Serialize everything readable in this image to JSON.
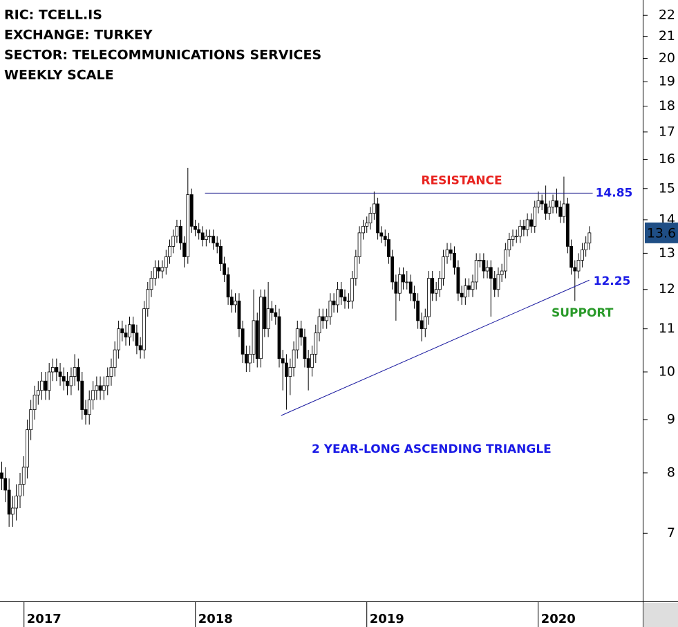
{
  "chart_data": {
    "type": "candlestick",
    "title_lines": [
      "RIC: TCELL.IS",
      "EXCHANGE: TURKEY",
      "SECTOR: TELECOMMUNICATIONS SERVICES",
      "WEEKLY SCALE"
    ],
    "log_y": true,
    "ylim": [
      6.02,
      22.76
    ],
    "yticks": [
      7,
      8,
      9,
      10,
      11,
      12,
      13,
      14,
      15,
      16,
      17,
      18,
      19,
      20,
      21,
      22
    ],
    "xlim": [
      2016.86,
      2020.61
    ],
    "xticks": [
      2017,
      2018,
      2019,
      2020
    ],
    "up_color": "#ffffff",
    "down_color": "#000000",
    "resistance": {
      "label": "RESISTANCE",
      "color": "#e8231f",
      "line_color": "#1a1a8c",
      "x": [
        2018.056,
        2020.318
      ],
      "y": 14.85
    },
    "support": {
      "label": "SUPPORT",
      "color": "#2a9a2a",
      "line_color": "#1a1aa0",
      "x": [
        2018.5,
        2020.298
      ],
      "y": [
        9.08,
        12.25
      ]
    },
    "pattern_label": "2 YEAR-LONG ASCENDING TRIANGLE",
    "level_color": "#1a1ae6",
    "last_price_color": "#1f4e85",
    "x": [
      2016.87,
      2016.891,
      2016.913,
      2016.934,
      2016.955,
      2016.977,
      2016.998,
      2017.019,
      2017.04,
      2017.062,
      2017.083,
      2017.104,
      2017.126,
      2017.147,
      2017.168,
      2017.19,
      2017.211,
      2017.232,
      2017.253,
      2017.275,
      2017.296,
      2017.317,
      2017.339,
      2017.36,
      2017.381,
      2017.403,
      2017.424,
      2017.445,
      2017.466,
      2017.488,
      2017.509,
      2017.53,
      2017.552,
      2017.573,
      2017.594,
      2017.616,
      2017.637,
      2017.658,
      2017.679,
      2017.701,
      2017.722,
      2017.743,
      2017.765,
      2017.786,
      2017.807,
      2017.829,
      2017.85,
      2017.871,
      2017.892,
      2017.914,
      2017.935,
      2017.956,
      2017.978,
      2017.999,
      2018.02,
      2018.042,
      2018.063,
      2018.084,
      2018.105,
      2018.127,
      2018.148,
      2018.169,
      2018.191,
      2018.212,
      2018.233,
      2018.255,
      2018.276,
      2018.297,
      2018.318,
      2018.34,
      2018.361,
      2018.382,
      2018.404,
      2018.425,
      2018.446,
      2018.468,
      2018.489,
      2018.51,
      2018.531,
      2018.553,
      2018.574,
      2018.595,
      2018.617,
      2018.638,
      2018.659,
      2018.681,
      2018.702,
      2018.723,
      2018.744,
      2018.766,
      2018.787,
      2018.808,
      2018.83,
      2018.851,
      2018.872,
      2018.894,
      2018.915,
      2018.936,
      2018.957,
      2018.979,
      2019.0,
      2019.021,
      2019.043,
      2019.064,
      2019.085,
      2019.107,
      2019.128,
      2019.149,
      2019.17,
      2019.192,
      2019.213,
      2019.234,
      2019.256,
      2019.277,
      2019.298,
      2019.32,
      2019.341,
      2019.362,
      2019.383,
      2019.405,
      2019.426,
      2019.447,
      2019.469,
      2019.49,
      2019.511,
      2019.533,
      2019.554,
      2019.575,
      2019.596,
      2019.618,
      2019.639,
      2019.66,
      2019.682,
      2019.703,
      2019.724,
      2019.746,
      2019.767,
      2019.788,
      2019.809,
      2019.831,
      2019.852,
      2019.873,
      2019.895,
      2019.916,
      2019.937,
      2019.959,
      2019.98,
      2020.001,
      2020.022,
      2020.044,
      2020.065,
      2020.086,
      2020.108,
      2020.129,
      2020.15,
      2020.172,
      2020.193,
      2020.214,
      2020.235,
      2020.257,
      2020.278,
      2020.299
    ],
    "candles": [
      [
        8.0,
        8.2,
        7.7,
        7.9
      ],
      [
        7.9,
        8.1,
        7.5,
        7.7
      ],
      [
        7.7,
        7.9,
        7.1,
        7.3
      ],
      [
        7.3,
        7.6,
        7.1,
        7.4
      ],
      [
        7.4,
        7.8,
        7.2,
        7.6
      ],
      [
        7.6,
        8.0,
        7.4,
        7.8
      ],
      [
        7.8,
        8.3,
        7.6,
        8.1
      ],
      [
        8.1,
        9.0,
        7.9,
        8.8
      ],
      [
        8.8,
        9.4,
        8.6,
        9.2
      ],
      [
        9.2,
        9.7,
        9.0,
        9.5
      ],
      [
        9.5,
        9.8,
        9.3,
        9.6
      ],
      [
        9.6,
        10.0,
        9.4,
        9.8
      ],
      [
        9.8,
        10.0,
        9.4,
        9.6
      ],
      [
        9.6,
        10.2,
        9.4,
        10.0
      ],
      [
        10.0,
        10.3,
        9.8,
        10.1
      ],
      [
        10.1,
        10.3,
        9.8,
        10.0
      ],
      [
        10.0,
        10.2,
        9.7,
        9.9
      ],
      [
        9.9,
        10.1,
        9.6,
        9.8
      ],
      [
        9.8,
        10.0,
        9.5,
        9.7
      ],
      [
        9.7,
        10.1,
        9.5,
        9.9
      ],
      [
        9.9,
        10.4,
        9.7,
        10.1
      ],
      [
        10.1,
        10.3,
        9.6,
        9.8
      ],
      [
        9.8,
        10.0,
        9.0,
        9.2
      ],
      [
        9.2,
        9.4,
        8.9,
        9.1
      ],
      [
        9.1,
        9.6,
        8.9,
        9.4
      ],
      [
        9.4,
        9.8,
        9.2,
        9.6
      ],
      [
        9.6,
        9.9,
        9.4,
        9.7
      ],
      [
        9.7,
        9.9,
        9.4,
        9.6
      ],
      [
        9.6,
        9.9,
        9.4,
        9.7
      ],
      [
        9.7,
        10.1,
        9.5,
        9.9
      ],
      [
        9.9,
        10.3,
        9.7,
        10.1
      ],
      [
        10.1,
        10.7,
        9.9,
        10.5
      ],
      [
        10.5,
        11.2,
        10.3,
        11.0
      ],
      [
        11.0,
        11.2,
        10.7,
        10.9
      ],
      [
        10.9,
        11.1,
        10.6,
        10.8
      ],
      [
        10.8,
        11.3,
        10.6,
        11.1
      ],
      [
        11.1,
        11.3,
        10.7,
        10.9
      ],
      [
        10.9,
        11.1,
        10.4,
        10.6
      ],
      [
        10.6,
        10.8,
        10.3,
        10.5
      ],
      [
        10.5,
        11.7,
        10.3,
        11.5
      ],
      [
        11.5,
        12.2,
        11.3,
        12.0
      ],
      [
        12.0,
        12.5,
        11.8,
        12.3
      ],
      [
        12.3,
        12.8,
        12.1,
        12.6
      ],
      [
        12.6,
        12.8,
        12.3,
        12.5
      ],
      [
        12.5,
        12.8,
        12.3,
        12.6
      ],
      [
        12.6,
        13.1,
        12.4,
        12.9
      ],
      [
        12.9,
        13.4,
        12.7,
        13.2
      ],
      [
        13.2,
        13.7,
        13.0,
        13.5
      ],
      [
        13.5,
        14.0,
        13.3,
        13.8
      ],
      [
        13.8,
        14.0,
        13.1,
        13.3
      ],
      [
        13.3,
        13.5,
        12.6,
        12.9
      ],
      [
        12.9,
        15.7,
        12.7,
        14.8
      ],
      [
        14.8,
        15.0,
        13.6,
        13.8
      ],
      [
        13.8,
        14.0,
        13.5,
        13.7
      ],
      [
        13.7,
        13.9,
        13.4,
        13.6
      ],
      [
        13.6,
        13.8,
        13.2,
        13.4
      ],
      [
        13.4,
        13.7,
        13.2,
        13.5
      ],
      [
        13.5,
        13.7,
        13.3,
        13.5
      ],
      [
        13.5,
        13.7,
        13.1,
        13.3
      ],
      [
        13.3,
        13.5,
        13.0,
        13.2
      ],
      [
        13.2,
        13.4,
        12.5,
        12.7
      ],
      [
        12.7,
        12.9,
        12.2,
        12.4
      ],
      [
        12.4,
        12.6,
        11.6,
        11.8
      ],
      [
        11.8,
        12.0,
        11.4,
        11.6
      ],
      [
        11.6,
        11.9,
        11.4,
        11.7
      ],
      [
        11.7,
        11.9,
        10.8,
        11.0
      ],
      [
        11.0,
        11.2,
        10.2,
        10.4
      ],
      [
        10.4,
        10.6,
        10.0,
        10.2
      ],
      [
        10.2,
        10.6,
        10.0,
        10.4
      ],
      [
        10.4,
        12.0,
        10.2,
        11.2
      ],
      [
        11.2,
        11.4,
        10.1,
        10.3
      ],
      [
        10.3,
        12.0,
        10.1,
        11.8
      ],
      [
        11.8,
        12.0,
        10.8,
        11.0
      ],
      [
        11.0,
        12.2,
        10.8,
        11.5
      ],
      [
        11.5,
        11.7,
        11.2,
        11.4
      ],
      [
        11.4,
        11.6,
        11.1,
        11.3
      ],
      [
        11.3,
        11.5,
        10.1,
        10.3
      ],
      [
        10.3,
        10.5,
        9.6,
        10.2
      ],
      [
        10.2,
        10.4,
        9.2,
        9.9
      ],
      [
        9.9,
        10.3,
        9.5,
        10.1
      ],
      [
        10.1,
        10.7,
        9.9,
        10.5
      ],
      [
        10.5,
        11.2,
        10.3,
        11.0
      ],
      [
        11.0,
        11.2,
        10.6,
        10.8
      ],
      [
        10.8,
        11.0,
        10.1,
        10.3
      ],
      [
        10.3,
        10.5,
        9.6,
        10.1
      ],
      [
        10.1,
        10.6,
        9.9,
        10.4
      ],
      [
        10.4,
        11.1,
        10.2,
        10.9
      ],
      [
        10.9,
        11.5,
        10.7,
        11.3
      ],
      [
        11.3,
        11.5,
        11.0,
        11.2
      ],
      [
        11.2,
        11.5,
        11.0,
        11.3
      ],
      [
        11.3,
        11.9,
        11.1,
        11.7
      ],
      [
        11.7,
        11.9,
        11.4,
        11.6
      ],
      [
        11.6,
        12.2,
        11.4,
        12.0
      ],
      [
        12.0,
        12.2,
        11.6,
        11.8
      ],
      [
        11.8,
        12.0,
        11.5,
        11.7
      ],
      [
        11.7,
        11.9,
        11.5,
        11.7
      ],
      [
        11.7,
        12.5,
        11.5,
        12.3
      ],
      [
        12.3,
        13.1,
        12.1,
        12.9
      ],
      [
        12.9,
        13.8,
        12.7,
        13.6
      ],
      [
        13.6,
        14.0,
        13.4,
        13.8
      ],
      [
        13.8,
        14.1,
        13.6,
        13.9
      ],
      [
        13.9,
        14.4,
        13.7,
        14.2
      ],
      [
        14.2,
        14.9,
        14.0,
        14.5
      ],
      [
        14.5,
        14.7,
        13.4,
        13.6
      ],
      [
        13.6,
        13.8,
        13.3,
        13.5
      ],
      [
        13.5,
        13.7,
        13.2,
        13.4
      ],
      [
        13.4,
        13.6,
        12.7,
        12.9
      ],
      [
        12.9,
        13.1,
        12.0,
        12.2
      ],
      [
        12.2,
        12.4,
        11.2,
        11.9
      ],
      [
        11.9,
        12.6,
        11.7,
        12.4
      ],
      [
        12.4,
        12.6,
        12.0,
        12.2
      ],
      [
        12.2,
        12.5,
        12.0,
        12.2
      ],
      [
        12.2,
        12.4,
        11.7,
        11.9
      ],
      [
        11.9,
        12.1,
        11.5,
        11.7
      ],
      [
        11.7,
        11.9,
        11.0,
        11.2
      ],
      [
        11.2,
        11.4,
        10.7,
        11.0
      ],
      [
        11.0,
        11.5,
        10.8,
        11.3
      ],
      [
        11.3,
        12.5,
        11.1,
        12.3
      ],
      [
        12.3,
        12.5,
        11.7,
        11.9
      ],
      [
        11.9,
        12.2,
        11.7,
        12.0
      ],
      [
        12.0,
        12.5,
        11.8,
        12.3
      ],
      [
        12.3,
        13.1,
        12.1,
        12.9
      ],
      [
        12.9,
        13.3,
        12.7,
        13.1
      ],
      [
        13.1,
        13.3,
        12.8,
        13.0
      ],
      [
        13.0,
        13.2,
        12.4,
        12.6
      ],
      [
        12.6,
        12.8,
        11.7,
        11.9
      ],
      [
        11.9,
        12.1,
        11.6,
        11.8
      ],
      [
        11.8,
        12.3,
        11.6,
        12.1
      ],
      [
        12.1,
        12.3,
        11.8,
        12.0
      ],
      [
        12.0,
        12.4,
        11.8,
        12.2
      ],
      [
        12.2,
        13.0,
        12.0,
        12.8
      ],
      [
        12.8,
        13.0,
        12.6,
        12.8
      ],
      [
        12.8,
        13.0,
        12.3,
        12.5
      ],
      [
        12.5,
        12.8,
        12.3,
        12.6
      ],
      [
        12.6,
        12.8,
        11.3,
        12.3
      ],
      [
        12.3,
        12.5,
        11.8,
        12.0
      ],
      [
        12.0,
        12.6,
        11.8,
        12.4
      ],
      [
        12.4,
        12.7,
        12.2,
        12.5
      ],
      [
        12.5,
        13.3,
        12.3,
        13.1
      ],
      [
        13.1,
        13.6,
        12.9,
        13.4
      ],
      [
        13.4,
        13.7,
        13.2,
        13.5
      ],
      [
        13.5,
        13.7,
        13.3,
        13.5
      ],
      [
        13.5,
        14.0,
        13.3,
        13.8
      ],
      [
        13.8,
        14.0,
        13.5,
        13.7
      ],
      [
        13.7,
        14.2,
        13.5,
        14.0
      ],
      [
        14.0,
        14.2,
        13.6,
        13.8
      ],
      [
        13.8,
        14.6,
        13.6,
        14.4
      ],
      [
        14.4,
        14.9,
        14.2,
        14.6
      ],
      [
        14.6,
        14.8,
        14.3,
        14.5
      ],
      [
        14.5,
        15.1,
        14.0,
        14.2
      ],
      [
        14.2,
        14.6,
        14.0,
        14.4
      ],
      [
        14.4,
        14.8,
        14.2,
        14.6
      ],
      [
        14.6,
        15.0,
        14.2,
        14.4
      ],
      [
        14.4,
        14.6,
        13.9,
        14.1
      ],
      [
        14.1,
        15.4,
        13.9,
        14.5
      ],
      [
        14.5,
        14.7,
        13.0,
        13.2
      ],
      [
        13.2,
        13.4,
        12.4,
        12.6
      ],
      [
        12.6,
        12.8,
        11.7,
        12.5
      ],
      [
        12.5,
        13.0,
        12.3,
        12.8
      ],
      [
        12.8,
        13.3,
        12.6,
        13.1
      ],
      [
        13.1,
        13.5,
        12.9,
        13.3
      ],
      [
        13.3,
        13.8,
        13.1,
        13.6
      ]
    ]
  }
}
